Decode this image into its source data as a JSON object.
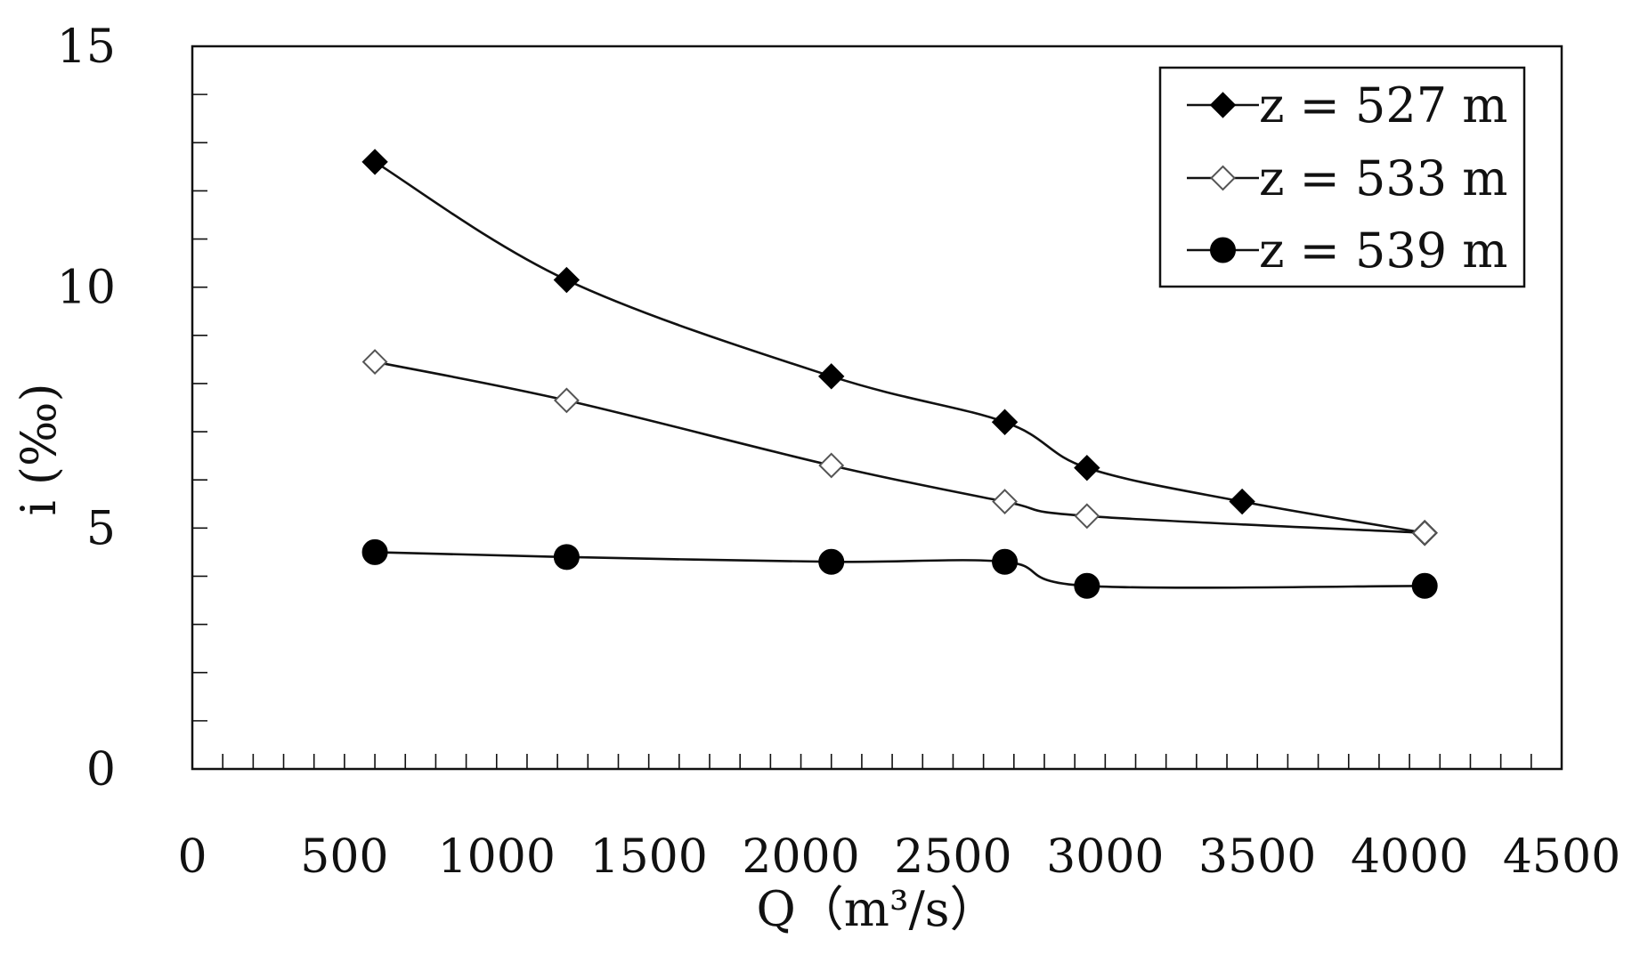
{
  "chart_data": {
    "type": "line",
    "title": "",
    "xlabel": "Q（m³/s）",
    "ylabel": "i (‰)",
    "xlim": [
      0,
      4500
    ],
    "ylim": [
      0,
      15
    ],
    "x_ticks": [
      0,
      500,
      1000,
      1500,
      2000,
      2500,
      3000,
      3500,
      4000,
      4500
    ],
    "y_ticks": [
      0,
      5,
      10,
      15
    ],
    "grid": false,
    "legend_position": "top-right",
    "series": [
      {
        "name": "z = 527 m",
        "marker": "filled-diamond",
        "x": [
          600,
          1230,
          2100,
          2670,
          2940,
          3450,
          4050
        ],
        "y": [
          12.6,
          10.15,
          8.15,
          7.2,
          6.25,
          5.55,
          4.9
        ]
      },
      {
        "name": "z = 533 m",
        "marker": "open-diamond",
        "x": [
          600,
          1230,
          2100,
          2670,
          2940,
          4050
        ],
        "y": [
          8.45,
          7.65,
          6.3,
          5.55,
          5.25,
          4.9
        ]
      },
      {
        "name": "z = 539 m",
        "marker": "filled-circle",
        "x": [
          600,
          1230,
          2100,
          2670,
          2940,
          4050
        ],
        "y": [
          4.5,
          4.4,
          4.3,
          4.3,
          3.8,
          3.8
        ]
      }
    ],
    "colors": {
      "line": "#111111",
      "marker_fill": "#000000",
      "open_marker_stroke": "#555555"
    }
  }
}
